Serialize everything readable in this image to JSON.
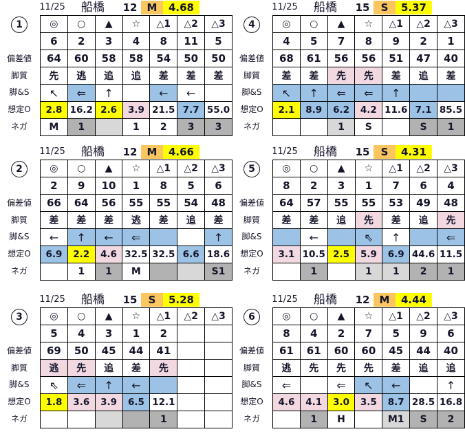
{
  "palette": {
    "yellow": "#ffff00",
    "orange": "#fbc55f",
    "blue": "#9cc3e5",
    "pink": "#f1d8e1",
    "gray": "#b2b2b2",
    "lightgray": "#d8d8d8"
  },
  "row_labels": {
    "hensachi": "偏差値",
    "kyakushitsu": "脚質",
    "kyaku_s": "脚&S",
    "souteio": "想定O",
    "nega": "ネガ"
  },
  "symbol_header": [
    "◎",
    "○",
    "▲",
    "☆",
    "△1",
    "△2",
    "△3"
  ],
  "blocks": [
    {
      "circled_number": "1",
      "header": {
        "date": "11/25",
        "track": "船橋",
        "race": "12",
        "class": "M",
        "value": "4.68"
      },
      "horse_numbers": [
        "6",
        "2",
        "3",
        "4",
        "8",
        "11",
        "5"
      ],
      "hensachi": [
        "64",
        "60",
        "58",
        "58",
        "54",
        "50",
        "50"
      ],
      "kyakushitsu": {
        "values": [
          "先",
          "逃",
          "追",
          "追",
          "差",
          "差",
          "差"
        ],
        "colors": [
          "",
          "",
          "",
          "",
          "",
          "",
          ""
        ]
      },
      "kyaku_s": {
        "values": [
          "↖",
          "⇐",
          "↑",
          "",
          "←",
          "←",
          ""
        ],
        "colors": [
          "",
          "blue",
          "",
          "",
          "blue",
          "",
          ""
        ]
      },
      "souteio": {
        "values": [
          "2.8",
          "16.2",
          "2.6",
          "3.9",
          "21.5",
          "7.7",
          "55.0"
        ],
        "colors": [
          "yellow",
          "",
          "yellow",
          "pink",
          "",
          "blue",
          ""
        ]
      },
      "nega": {
        "values": [
          "M",
          "1",
          "",
          "1",
          "2",
          "3",
          "3"
        ],
        "colors": [
          "",
          "gray",
          "lightgray",
          "",
          "",
          "gray",
          "gray"
        ]
      }
    },
    {
      "circled_number": "2",
      "header": {
        "date": "11/25",
        "track": "船橋",
        "race": "12",
        "class": "M",
        "value": "4.66"
      },
      "horse_numbers": [
        "2",
        "9",
        "10",
        "1",
        "8",
        "5",
        "6"
      ],
      "hensachi": [
        "66",
        "64",
        "56",
        "55",
        "55",
        "54",
        "48"
      ],
      "kyakushitsu": {
        "values": [
          "差",
          "差",
          "差",
          "逃",
          "差",
          "追",
          "差"
        ],
        "colors": [
          "",
          "",
          "",
          "",
          "",
          "",
          ""
        ]
      },
      "kyaku_s": {
        "values": [
          "←",
          "↑",
          "←",
          "⇐",
          "",
          "",
          "↑"
        ],
        "colors": [
          "",
          "blue",
          "blue",
          "blue",
          "blue",
          "",
          "blue"
        ]
      },
      "souteio": {
        "values": [
          "6.9",
          "2.2",
          "4.6",
          "32.5",
          "32.5",
          "6.6",
          "18.6"
        ],
        "colors": [
          "blue",
          "yellow",
          "pink",
          "",
          "",
          "blue",
          ""
        ]
      },
      "nega": {
        "values": [
          "",
          "1",
          "1",
          "M",
          "",
          "",
          "S1"
        ],
        "colors": [
          "",
          "",
          "gray",
          "",
          "gray",
          "lightgray",
          "gray"
        ]
      }
    },
    {
      "circled_number": "3",
      "header": {
        "date": "11/25",
        "track": "船橋",
        "race": "15",
        "class": "S",
        "value": "5.28"
      },
      "horse_numbers": [
        "5",
        "4",
        "3",
        "1",
        "2",
        "",
        ""
      ],
      "hensachi": [
        "69",
        "50",
        "45",
        "44",
        "41",
        "",
        ""
      ],
      "kyakushitsu": {
        "values": [
          "逃",
          "先",
          "追",
          "差",
          "先",
          "",
          ""
        ],
        "colors": [
          "pink",
          "pink",
          "",
          "",
          "pink",
          "",
          ""
        ]
      },
      "kyaku_s": {
        "values": [
          "⇖",
          "⇐",
          "↑",
          "←",
          "",
          "",
          ""
        ],
        "colors": [
          "",
          "blue",
          "blue",
          "blue",
          "blue",
          "",
          ""
        ]
      },
      "souteio": {
        "values": [
          "1.8",
          "3.6",
          "3.9",
          "6.5",
          "12.1",
          "",
          ""
        ],
        "colors": [
          "yellow",
          "pink",
          "pink",
          "blue",
          "",
          "",
          ""
        ]
      },
      "nega": {
        "values": [
          "",
          "",
          "",
          "",
          "1",
          "",
          ""
        ],
        "colors": [
          "",
          "",
          "lightgray",
          "gray",
          "gray",
          "",
          ""
        ]
      }
    },
    {
      "circled_number": "4",
      "header": {
        "date": "11/25",
        "track": "船橋",
        "race": "15",
        "class": "S",
        "value": "5.37"
      },
      "horse_numbers": [
        "4",
        "5",
        "7",
        "8",
        "9",
        "2",
        "1"
      ],
      "hensachi": [
        "68",
        "61",
        "56",
        "56",
        "51",
        "47",
        "40"
      ],
      "kyakushitsu": {
        "values": [
          "差",
          "差",
          "先",
          "先",
          "差",
          "追",
          "差"
        ],
        "colors": [
          "",
          "",
          "pink",
          "pink",
          "",
          "",
          ""
        ]
      },
      "kyaku_s": {
        "values": [
          "↖",
          "↑",
          "⇐",
          "⇐",
          "↑",
          "",
          ""
        ],
        "colors": [
          "blue",
          "blue",
          "blue",
          "blue",
          "blue",
          "blue",
          "blue"
        ]
      },
      "souteio": {
        "values": [
          "2.1",
          "8.9",
          "6.2",
          "4.2",
          "11.6",
          "7.1",
          "85.5"
        ],
        "colors": [
          "yellow",
          "blue",
          "blue",
          "pink",
          "",
          "blue",
          ""
        ]
      },
      "nega": {
        "values": [
          "",
          "",
          "1",
          "S",
          "",
          "S",
          "1"
        ],
        "colors": [
          "",
          "",
          "lightgray",
          "",
          "",
          "gray",
          "gray"
        ]
      }
    },
    {
      "circled_number": "5",
      "header": {
        "date": "11/25",
        "track": "船橋",
        "race": "15",
        "class": "S",
        "value": "4.31"
      },
      "horse_numbers": [
        "8",
        "2",
        "3",
        "1",
        "7",
        "6",
        "4"
      ],
      "hensachi": [
        "64",
        "57",
        "55",
        "55",
        "53",
        "49",
        "48"
      ],
      "kyakushitsu": {
        "values": [
          "差",
          "差",
          "追",
          "先",
          "差",
          "追",
          "先"
        ],
        "colors": [
          "",
          "",
          "",
          "pink",
          "",
          "",
          "pink"
        ]
      },
      "kyaku_s": {
        "values": [
          "",
          "←",
          "",
          "⇖",
          "↑",
          "",
          "⇐"
        ],
        "colors": [
          "blue",
          "",
          "blue",
          "blue",
          "",
          "blue",
          "blue"
        ]
      },
      "souteio": {
        "values": [
          "3.1",
          "10.5",
          "2.5",
          "5.9",
          "6.9",
          "44.6",
          "11.5"
        ],
        "colors": [
          "pink",
          "",
          "yellow",
          "pink",
          "blue",
          "",
          ""
        ]
      },
      "nega": {
        "values": [
          "",
          "1",
          "",
          "1",
          "1",
          "2",
          "1"
        ],
        "colors": [
          "",
          "gray",
          "",
          "lightgray",
          "lightgray",
          "gray",
          "gray"
        ]
      }
    },
    {
      "circled_number": "6",
      "header": {
        "date": "11/25",
        "track": "船橋",
        "race": "12",
        "class": "M",
        "value": "4.44"
      },
      "horse_numbers": [
        "8",
        "4",
        "2",
        "7",
        "5",
        "9",
        "6"
      ],
      "hensachi": [
        "61",
        "61",
        "60",
        "60",
        "45",
        "44",
        "40"
      ],
      "kyakushitsu": {
        "values": [
          "逃",
          "先",
          "先",
          "先",
          "差",
          "追",
          "追"
        ],
        "colors": [
          "",
          "",
          "",
          "",
          "",
          "",
          ""
        ]
      },
      "kyaku_s": {
        "values": [
          "⇐",
          "",
          "⇐",
          "↖",
          "←",
          "",
          "↑"
        ],
        "colors": [
          "",
          "",
          "",
          "blue",
          "blue",
          "",
          ""
        ]
      },
      "souteio": {
        "values": [
          "4.6",
          "4.1",
          "3.0",
          "3.5",
          "8.7",
          "28.5",
          "16.8"
        ],
        "colors": [
          "pink",
          "pink",
          "yellow",
          "pink",
          "blue",
          "",
          ""
        ]
      },
      "nega": {
        "values": [
          "",
          "1",
          "H",
          "",
          "M1",
          "S",
          "2"
        ],
        "colors": [
          "",
          "gray",
          "",
          "",
          "lightgray",
          "gray",
          "gray"
        ]
      }
    }
  ]
}
